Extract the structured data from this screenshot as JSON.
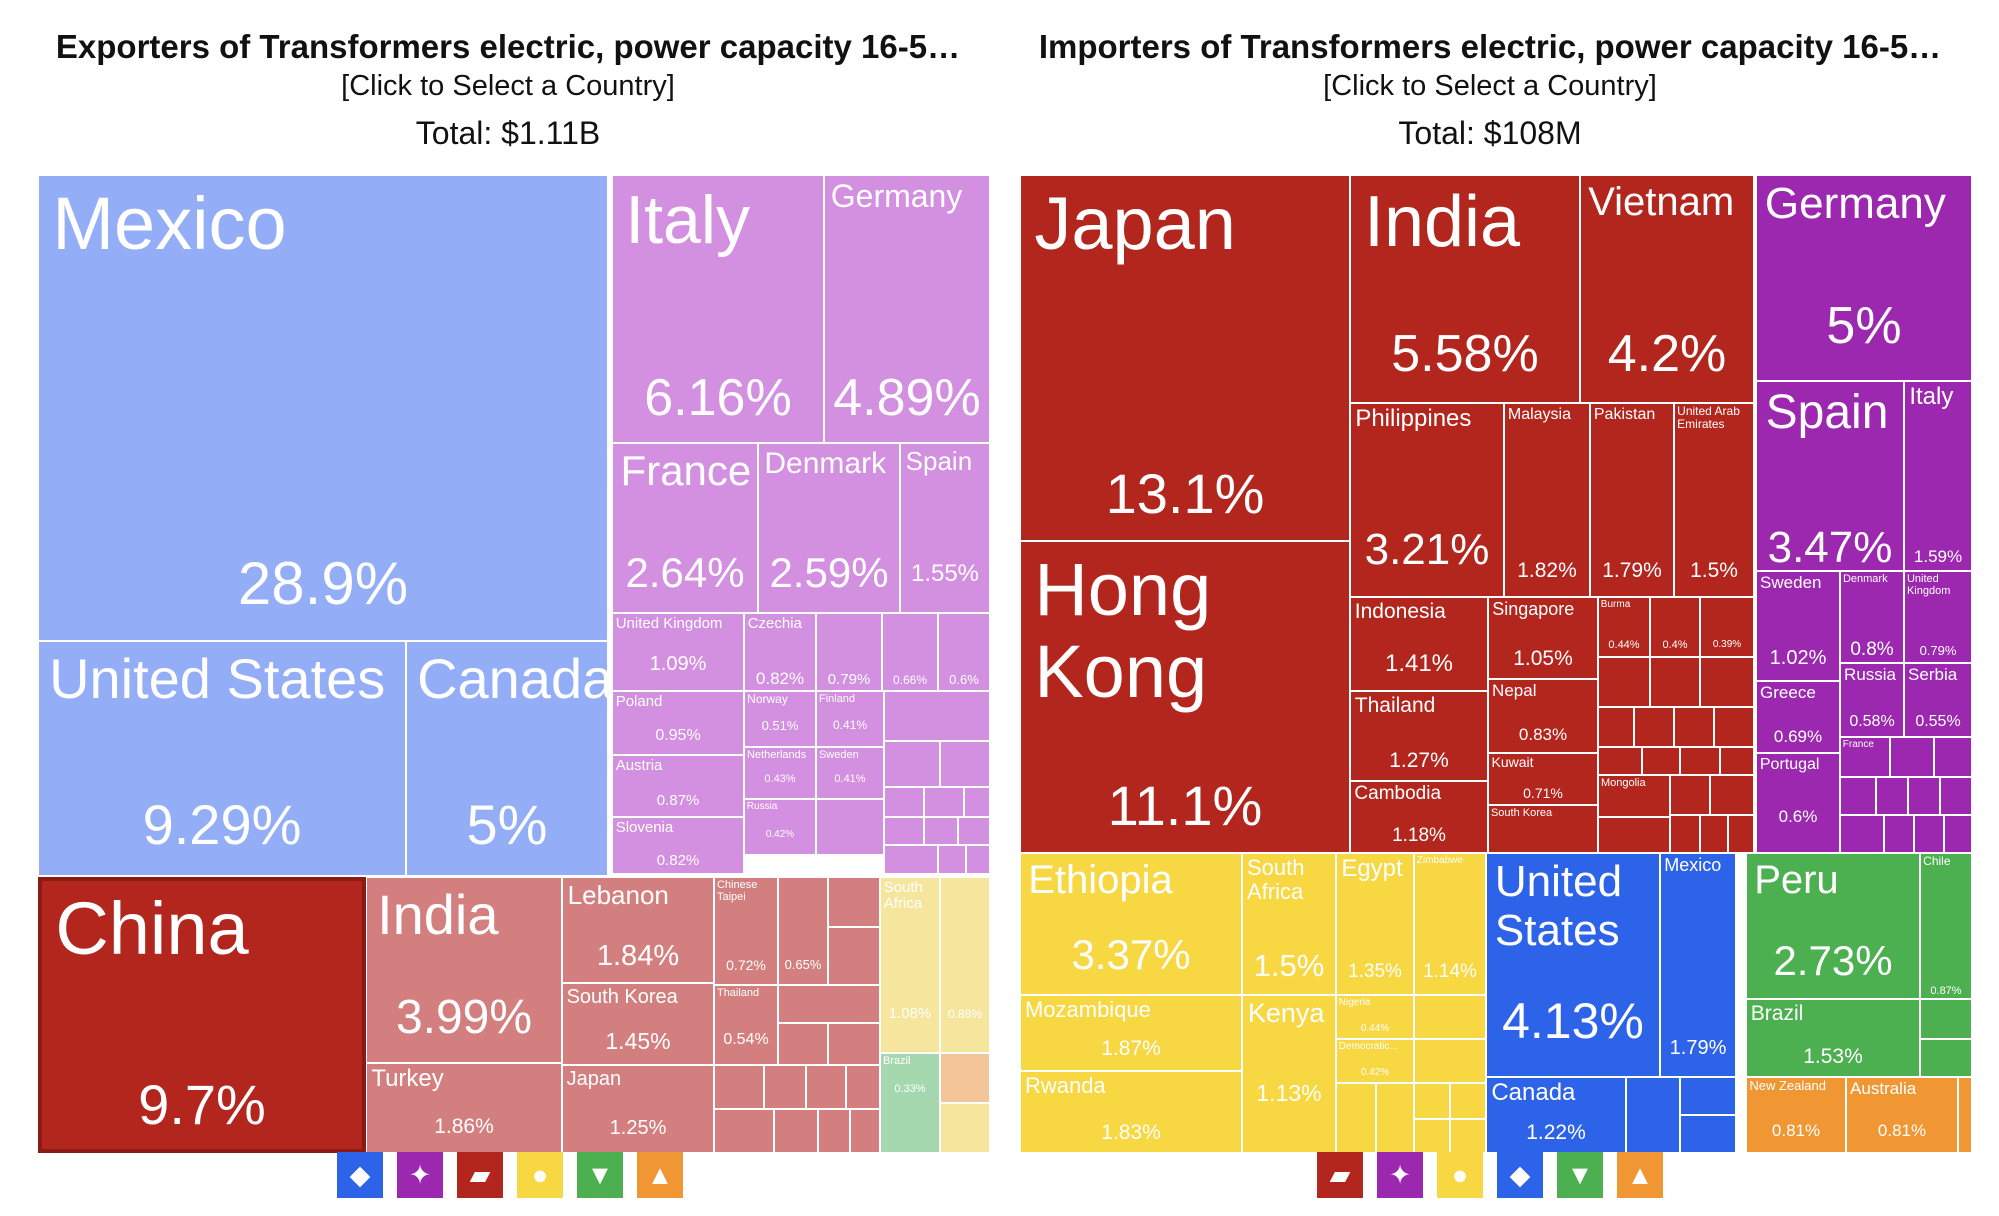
{
  "colors": {
    "north_america": "#93aef6",
    "europe": "#d38fe0",
    "asia": "#d47f7f",
    "asia_selected": "#b3261e",
    "africa": "#f6e59d",
    "south_america": "#a6d8b0",
    "oceania": "#f5c59a",
    "imp_asia": "#b3261e",
    "imp_europe": "#9c28b0",
    "imp_africa": "#f7d742",
    "imp_north_america": "#2c63e8",
    "imp_south_america": "#4caf50",
    "imp_oceania": "#f09733"
  },
  "exporters": {
    "title": "Exporters of Transformers electric, power capacity 16-5…",
    "subtitle": "[Click to Select a Country]",
    "total": "Total: $1.11B",
    "legend": [
      {
        "icon": "north-america-icon",
        "color": "#2c63e8",
        "glyph": "◆"
      },
      {
        "icon": "europe-icon",
        "color": "#9c28b0",
        "glyph": "✦"
      },
      {
        "icon": "asia-icon",
        "color": "#b3261e",
        "glyph": "▰"
      },
      {
        "icon": "africa-icon",
        "color": "#f7d742",
        "glyph": "●"
      },
      {
        "icon": "south-america-icon",
        "color": "#4caf50",
        "glyph": "▼"
      },
      {
        "icon": "oceania-icon",
        "color": "#f09733",
        "glyph": "▲"
      }
    ]
  },
  "importers": {
    "title": "Importers of Transformers electric, power capacity 16-5…",
    "subtitle": "[Click to Select a Country]",
    "total": "Total: $108M",
    "legend": [
      {
        "icon": "asia-icon",
        "color": "#b3261e",
        "glyph": "▰"
      },
      {
        "icon": "europe-icon",
        "color": "#9c28b0",
        "glyph": "✦"
      },
      {
        "icon": "africa-icon",
        "color": "#f7d742",
        "glyph": "●"
      },
      {
        "icon": "north-america-icon",
        "color": "#2c63e8",
        "glyph": "◆"
      },
      {
        "icon": "south-america-icon",
        "color": "#4caf50",
        "glyph": "▼"
      },
      {
        "icon": "oceania-icon",
        "color": "#f09733",
        "glyph": "▲"
      }
    ]
  },
  "chart_data": [
    {
      "type": "treemap",
      "title": "Exporters of Transformers electric, power capacity 16-5…",
      "subtitle": "[Click to Select a Country]",
      "total": "Total: $1.11B",
      "selected": "China",
      "series": [
        {
          "name": "Mexico",
          "value": 28.9,
          "label": "28.9%",
          "group": "north_america"
        },
        {
          "name": "United States",
          "value": 9.29,
          "label": "9.29%",
          "group": "north_america"
        },
        {
          "name": "Canada",
          "value": 5.0,
          "label": "5%",
          "group": "north_america"
        },
        {
          "name": "Italy",
          "value": 6.16,
          "label": "6.16%",
          "group": "europe"
        },
        {
          "name": "Germany",
          "value": 4.89,
          "label": "4.89%",
          "group": "europe"
        },
        {
          "name": "France",
          "value": 2.64,
          "label": "2.64%",
          "group": "europe"
        },
        {
          "name": "Denmark",
          "value": 2.59,
          "label": "2.59%",
          "group": "europe"
        },
        {
          "name": "Spain",
          "value": 1.55,
          "label": "1.55%",
          "group": "europe"
        },
        {
          "name": "United Kingdom",
          "value": 1.09,
          "label": "1.09%",
          "group": "europe"
        },
        {
          "name": "Czechia",
          "value": 0.82,
          "label": "0.82%",
          "group": "europe"
        },
        {
          "name": "",
          "value": 0.79,
          "label": "0.79%",
          "group": "europe"
        },
        {
          "name": "",
          "value": 0.66,
          "label": "0.66%",
          "group": "europe"
        },
        {
          "name": "",
          "value": 0.6,
          "label": "0.6%",
          "group": "europe"
        },
        {
          "name": "Poland",
          "value": 0.95,
          "label": "0.95%",
          "group": "europe"
        },
        {
          "name": "Norway",
          "value": 0.51,
          "label": "0.51%",
          "group": "europe"
        },
        {
          "name": "Finland",
          "value": 0.41,
          "label": "0.41%",
          "group": "europe"
        },
        {
          "name": "Austria",
          "value": 0.87,
          "label": "0.87%",
          "group": "europe"
        },
        {
          "name": "Netherlands",
          "value": 0.43,
          "label": "0.43%",
          "group": "europe"
        },
        {
          "name": "Sweden",
          "value": 0.41,
          "label": "0.41%",
          "group": "europe"
        },
        {
          "name": "Slovenia",
          "value": 0.82,
          "label": "0.82%",
          "group": "europe"
        },
        {
          "name": "Russia",
          "value": 0.42,
          "label": "0.42%",
          "group": "europe"
        },
        {
          "name": "China",
          "value": 9.7,
          "label": "9.7%",
          "group": "asia"
        },
        {
          "name": "India",
          "value": 3.99,
          "label": "3.99%",
          "group": "asia"
        },
        {
          "name": "Turkey",
          "value": 1.86,
          "label": "1.86%",
          "group": "asia"
        },
        {
          "name": "Lebanon",
          "value": 1.84,
          "label": "1.84%",
          "group": "asia"
        },
        {
          "name": "South Korea",
          "value": 1.45,
          "label": "1.45%",
          "group": "asia"
        },
        {
          "name": "Japan",
          "value": 1.25,
          "label": "1.25%",
          "group": "asia"
        },
        {
          "name": "Chinese Taipei",
          "value": 0.72,
          "label": "0.72%",
          "group": "asia"
        },
        {
          "name": "",
          "value": 0.65,
          "label": "0.65%",
          "group": "asia"
        },
        {
          "name": "Thailand",
          "value": 0.54,
          "label": "0.54%",
          "group": "asia"
        },
        {
          "name": "South Africa",
          "value": 1.08,
          "label": "1.08%",
          "group": "africa"
        },
        {
          "name": "",
          "value": 0.88,
          "label": "0.88%",
          "group": "africa"
        },
        {
          "name": "Brazil",
          "value": 0.33,
          "label": "0.33%",
          "group": "south_america"
        }
      ]
    },
    {
      "type": "treemap",
      "title": "Importers of Transformers electric, power capacity 16-5…",
      "subtitle": "[Click to Select a Country]",
      "total": "Total: $108M",
      "series": [
        {
          "name": "Japan",
          "value": 13.1,
          "label": "13.1%",
          "group": "asia"
        },
        {
          "name": "Hong Kong",
          "value": 11.1,
          "label": "11.1%",
          "group": "asia"
        },
        {
          "name": "India",
          "value": 5.58,
          "label": "5.58%",
          "group": "asia"
        },
        {
          "name": "Vietnam",
          "value": 4.2,
          "label": "4.2%",
          "group": "asia"
        },
        {
          "name": "Philippines",
          "value": 3.21,
          "label": "3.21%",
          "group": "asia"
        },
        {
          "name": "Malaysia",
          "value": 1.82,
          "label": "1.82%",
          "group": "asia"
        },
        {
          "name": "Pakistan",
          "value": 1.79,
          "label": "1.79%",
          "group": "asia"
        },
        {
          "name": "United Arab Emirates",
          "value": 1.5,
          "label": "1.5%",
          "group": "asia"
        },
        {
          "name": "Indonesia",
          "value": 1.41,
          "label": "1.41%",
          "group": "asia"
        },
        {
          "name": "Singapore",
          "value": 1.05,
          "label": "1.05%",
          "group": "asia"
        },
        {
          "name": "Thailand",
          "value": 1.27,
          "label": "1.27%",
          "group": "asia"
        },
        {
          "name": "Nepal",
          "value": 0.83,
          "label": "0.83%",
          "group": "asia"
        },
        {
          "name": "Cambodia",
          "value": 1.18,
          "label": "1.18%",
          "group": "asia"
        },
        {
          "name": "Kuwait",
          "value": 0.71,
          "label": "0.71%",
          "group": "asia"
        },
        {
          "name": "Burma",
          "value": 0.44,
          "label": "0.44%",
          "group": "asia"
        },
        {
          "name": "",
          "value": 0.4,
          "label": "0.4%",
          "group": "asia"
        },
        {
          "name": "",
          "value": 0.39,
          "label": "0.39%",
          "group": "asia"
        },
        {
          "name": "South Korea",
          "value": null,
          "label": "",
          "group": "asia"
        },
        {
          "name": "Mongolia",
          "value": null,
          "label": "",
          "group": "asia"
        },
        {
          "name": "Germany",
          "value": 5.0,
          "label": "5%",
          "group": "europe"
        },
        {
          "name": "Spain",
          "value": 3.47,
          "label": "3.47%",
          "group": "europe"
        },
        {
          "name": "Italy",
          "value": 1.59,
          "label": "1.59%",
          "group": "europe"
        },
        {
          "name": "Sweden",
          "value": 1.02,
          "label": "1.02%",
          "group": "europe"
        },
        {
          "name": "Denmark",
          "value": 0.8,
          "label": "0.8%",
          "group": "europe"
        },
        {
          "name": "United Kingdom",
          "value": 0.79,
          "label": "0.79%",
          "group": "europe"
        },
        {
          "name": "Greece",
          "value": 0.69,
          "label": "0.69%",
          "group": "europe"
        },
        {
          "name": "Russia",
          "value": 0.58,
          "label": "0.58%",
          "group": "europe"
        },
        {
          "name": "Serbia",
          "value": 0.55,
          "label": "0.55%",
          "group": "europe"
        },
        {
          "name": "Portugal",
          "value": 0.6,
          "label": "0.6%",
          "group": "europe"
        },
        {
          "name": "France",
          "value": null,
          "label": "",
          "group": "europe"
        },
        {
          "name": "Ethiopia",
          "value": 3.37,
          "label": "3.37%",
          "group": "africa"
        },
        {
          "name": "South Africa",
          "value": 1.5,
          "label": "1.5%",
          "group": "africa"
        },
        {
          "name": "Egypt",
          "value": 1.35,
          "label": "1.35%",
          "group": "africa"
        },
        {
          "name": "Zimbabwe",
          "value": 1.14,
          "label": "1.14%",
          "group": "africa"
        },
        {
          "name": "Mozambique",
          "value": 1.87,
          "label": "1.87%",
          "group": "africa"
        },
        {
          "name": "Rwanda",
          "value": 1.83,
          "label": "1.83%",
          "group": "africa"
        },
        {
          "name": "Kenya",
          "value": 1.13,
          "label": "1.13%",
          "group": "africa"
        },
        {
          "name": "Nigeria",
          "value": 0.44,
          "label": "0.44%",
          "group": "africa"
        },
        {
          "name": "Democratic...",
          "value": 0.42,
          "label": "0.42%",
          "group": "africa"
        },
        {
          "name": "United States",
          "value": 4.13,
          "label": "4.13%",
          "group": "north_america"
        },
        {
          "name": "Mexico",
          "value": 1.79,
          "label": "1.79%",
          "group": "north_america"
        },
        {
          "name": "Canada",
          "value": 1.22,
          "label": "1.22%",
          "group": "north_america"
        },
        {
          "name": "Peru",
          "value": 2.73,
          "label": "2.73%",
          "group": "south_america"
        },
        {
          "name": "Chile",
          "value": 0.87,
          "label": "0.87%",
          "group": "south_america"
        },
        {
          "name": "Brazil",
          "value": 1.53,
          "label": "1.53%",
          "group": "south_america"
        },
        {
          "name": "New Zealand",
          "value": 0.81,
          "label": "0.81%",
          "group": "oceania"
        },
        {
          "name": "Australia",
          "value": 0.81,
          "label": "0.81%",
          "group": "oceania"
        }
      ]
    }
  ]
}
